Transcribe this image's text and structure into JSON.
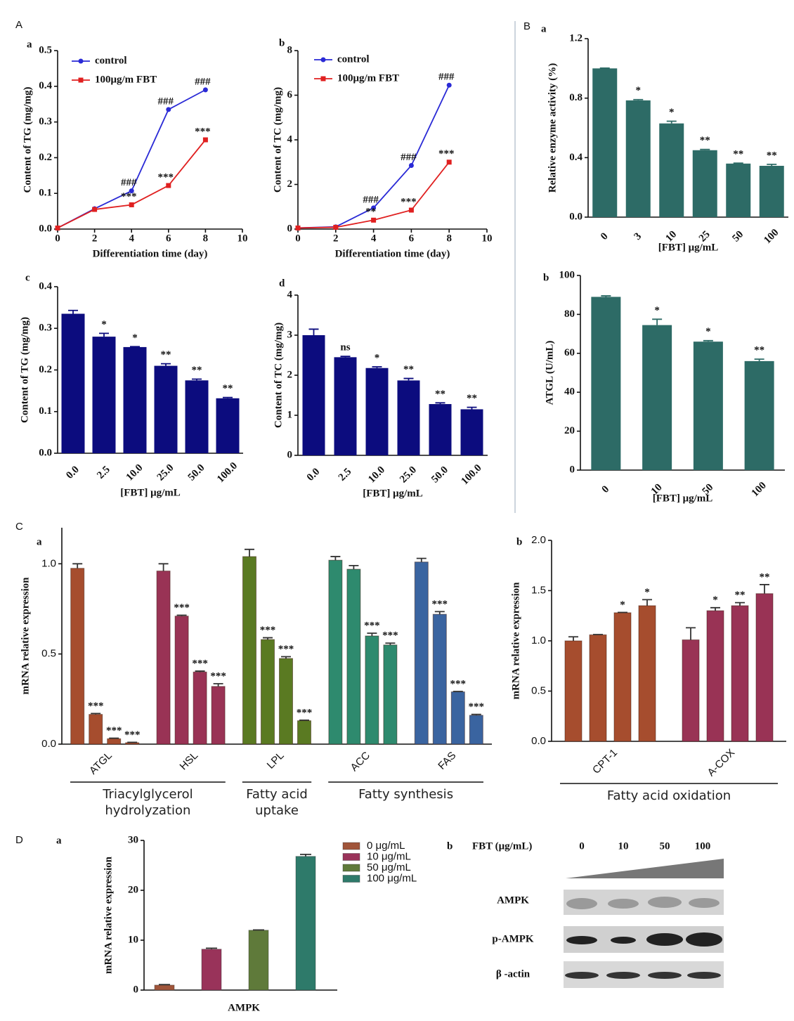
{
  "panel_labels": [
    "A",
    "B",
    "C",
    "D"
  ],
  "chart_data": [
    {
      "label": "a",
      "type": "line",
      "xlabel": "Differentiation time (day)",
      "ylabel": "Content of TG (mg/mg)",
      "x": [
        0,
        2,
        4,
        6,
        8
      ],
      "xlim": [
        0,
        10
      ],
      "xticks": [
        0,
        2,
        4,
        6,
        8,
        10
      ],
      "ylim": [
        0,
        0.5
      ],
      "yticks": [
        {
          "value": 0,
          "label": "0.0"
        },
        0.1,
        0.2,
        0.3,
        0.4,
        0.5
      ],
      "series": [
        {
          "name": "control",
          "color": "#2a2ad6",
          "marker": "circle",
          "values": [
            0.003,
            0.057,
            0.107,
            0.335,
            0.39
          ],
          "annotations": [
            null,
            null,
            "###",
            "###",
            "###"
          ]
        },
        {
          "name": "100μg/m FBT",
          "color": "#e02020",
          "marker": "square",
          "values": [
            0.003,
            0.055,
            0.068,
            0.122,
            0.25
          ],
          "annotations": [
            null,
            null,
            "***",
            "***",
            "***"
          ]
        }
      ]
    },
    {
      "label": "b",
      "type": "line",
      "xlabel": "Differentiation time (day)",
      "ylabel": "Content of TC (mg/mg)",
      "x": [
        0,
        2,
        4,
        6,
        8
      ],
      "xlim": [
        0,
        10
      ],
      "xticks": [
        0,
        2,
        4,
        6,
        8,
        10
      ],
      "ylim": [
        0,
        8
      ],
      "yticks": [
        0,
        2,
        4,
        6,
        8
      ],
      "series": [
        {
          "name": "control",
          "color": "#2a2ad6",
          "marker": "circle",
          "values": [
            0.05,
            0.1,
            0.95,
            2.85,
            6.45
          ],
          "annotations": [
            null,
            null,
            "###",
            "###",
            "###"
          ]
        },
        {
          "name": "100μg/m FBT",
          "color": "#e02020",
          "marker": "square",
          "values": [
            0.05,
            0.08,
            0.4,
            0.85,
            3.0
          ],
          "annotations": [
            null,
            null,
            "**",
            "***",
            "***"
          ]
        }
      ]
    },
    {
      "label": "c",
      "type": "bar",
      "xlabel": "[FBT] μg/mL",
      "ylabel": "Content of TG (mg/mg)",
      "color": "#0c0c7e",
      "categories": [
        "0.0",
        "2.5",
        "10.0",
        "25.0",
        "50.0",
        "100.0"
      ],
      "values": [
        0.335,
        0.28,
        0.255,
        0.21,
        0.175,
        0.132
      ],
      "errors": [
        0.008,
        0.008,
        0.001,
        0.005,
        0.003,
        0.002
      ],
      "annotations": [
        null,
        "*",
        "*",
        "**",
        "**",
        "**"
      ],
      "ylim": [
        0,
        0.4
      ],
      "yticks": [
        {
          "value": 0,
          "label": "0.0"
        },
        0.1,
        0.2,
        0.3,
        0.4
      ]
    },
    {
      "label": "d",
      "type": "bar",
      "xlabel": "[FBT] μg/mL",
      "ylabel": "Content of TC (mg/mg)",
      "color": "#0c0c7e",
      "categories": [
        "0.0",
        "2.5",
        "10.0",
        "25.0",
        "50.0",
        "100.0"
      ],
      "values": [
        3.0,
        2.45,
        2.18,
        1.87,
        1.28,
        1.15
      ],
      "errors": [
        0.15,
        0.02,
        0.03,
        0.05,
        0.03,
        0.05
      ],
      "annotations": [
        null,
        "ns",
        "*",
        "**",
        "**",
        "**"
      ],
      "ylim": [
        0,
        4
      ],
      "yticks": [
        0,
        1,
        2,
        3,
        4
      ]
    },
    {
      "label": "a",
      "type": "bar",
      "xlabel": "[FBT] μg/mL",
      "ylabel": "Relative enzyme activity (%)",
      "color": "#2d6b66",
      "categories": [
        "0",
        "3",
        "10",
        "25",
        "50",
        "100"
      ],
      "values": [
        1.0,
        0.785,
        0.63,
        0.45,
        0.36,
        0.345
      ],
      "errors": [
        0.002,
        0.005,
        0.015,
        0.005,
        0.003,
        0.01
      ],
      "annotations": [
        null,
        "*",
        "*",
        "**",
        "**",
        "**"
      ],
      "ylim": [
        0,
        1.2
      ],
      "yticks": [
        {
          "value": 0,
          "label": "0.0"
        },
        0.4,
        0.8,
        1.2
      ]
    },
    {
      "label": "b",
      "type": "bar",
      "xlabel": "[FBT] μg/mL",
      "ylabel": "ATGL (U/mL)",
      "color": "#2d6b66",
      "categories": [
        "0",
        "10",
        "50",
        "100"
      ],
      "values": [
        89,
        74.5,
        66,
        56
      ],
      "errors": [
        0.5,
        3,
        0.5,
        1
      ],
      "annotations": [
        null,
        "*",
        "*",
        "**"
      ],
      "ylim": [
        0,
        100
      ],
      "yticks": [
        0,
        20,
        40,
        60,
        80,
        100
      ]
    },
    {
      "label": "a",
      "type": "grouped_bar",
      "ylabel": "mRNA relative expression",
      "categories": [
        "ATGL",
        "HSL",
        "LPL",
        "ACC",
        "FAS"
      ],
      "colors": [
        "#a64d2e",
        "#993355",
        "#5a7a22",
        "#2e8a6e",
        "#3a64a0"
      ],
      "values": [
        [
          0.975,
          0.165,
          0.03,
          0.008
        ],
        [
          0.96,
          0.71,
          0.4,
          0.32
        ],
        [
          1.04,
          0.58,
          0.475,
          0.13
        ],
        [
          1.02,
          0.97,
          0.6,
          0.55
        ],
        [
          1.01,
          0.72,
          0.29,
          0.16
        ]
      ],
      "errors": [
        [
          0.025,
          0.005,
          0.003,
          0.002
        ],
        [
          0.04,
          0.005,
          0.005,
          0.015
        ],
        [
          0.04,
          0.01,
          0.01,
          0.003
        ],
        [
          0.02,
          0.02,
          0.015,
          0.01
        ],
        [
          0.02,
          0.015,
          0.002,
          0.005
        ]
      ],
      "annotations": [
        [
          null,
          "***",
          "***",
          "***"
        ],
        [
          null,
          "***",
          "***",
          "***"
        ],
        [
          null,
          "***",
          "***",
          "***"
        ],
        [
          null,
          null,
          "***",
          "***"
        ],
        [
          null,
          "***",
          "***",
          "***"
        ]
      ],
      "brackets": [
        {
          "label": "Triacylglycerol hydrolyzation",
          "span": [
            0,
            1
          ]
        },
        {
          "label": "Fatty acid uptake",
          "span": [
            2,
            2
          ]
        },
        {
          "label": "Fatty synthesis",
          "span": [
            3,
            4
          ]
        }
      ],
      "ylim": [
        0,
        1.2
      ],
      "yticks": [
        {
          "value": 0,
          "label": "0.0"
        },
        0.5,
        {
          "value": 1,
          "label": "1.0"
        }
      ]
    },
    {
      "label": "b",
      "type": "grouped_bar",
      "ylabel": "mRNA relative expression",
      "categories": [
        "CPT-1",
        "A-COX"
      ],
      "colors": [
        "#a64d2e",
        "#993355"
      ],
      "values": [
        [
          1.0,
          1.06,
          1.28,
          1.35
        ],
        [
          1.01,
          1.3,
          1.35,
          1.47
        ]
      ],
      "errors": [
        [
          0.04,
          0.003,
          0.003,
          0.06
        ],
        [
          0.12,
          0.03,
          0.03,
          0.09
        ]
      ],
      "annotations": [
        [
          null,
          null,
          "*",
          "*"
        ],
        [
          null,
          "*",
          "**",
          "**"
        ]
      ],
      "brackets": [
        {
          "label": "Fatty acid oxidation",
          "span": [
            0,
            1
          ]
        }
      ],
      "ylim": [
        0,
        2
      ],
      "yticks": [
        {
          "value": 0,
          "label": "0.0"
        },
        0.5,
        {
          "value": 1,
          "label": "1.0"
        },
        1.5,
        {
          "value": 2,
          "label": "2.0"
        }
      ]
    },
    {
      "label": "a",
      "type": "series_bar",
      "ylabel": "mRNA relative expression",
      "categories": [
        "AMPK"
      ],
      "series": [
        {
          "name": "0 μg/mL",
          "color": "#a0553a",
          "values": [
            1.0
          ],
          "errors": [
            0.1
          ]
        },
        {
          "name": "10 μg/mL",
          "color": "#99335a",
          "values": [
            8.2
          ],
          "errors": [
            0.2
          ]
        },
        {
          "name": "50 μg/mL",
          "color": "#5f7a3a",
          "values": [
            12.0
          ],
          "errors": [
            0.05
          ]
        },
        {
          "name": "100 μg/mL",
          "color": "#2e7a6a",
          "values": [
            26.8
          ],
          "errors": [
            0.4
          ]
        }
      ],
      "ylim": [
        0,
        30
      ],
      "yticks": [
        0,
        10,
        20,
        30
      ]
    }
  ],
  "blot": {
    "label": "b",
    "title": "FBT (μg/mL)",
    "concentrations": [
      "0",
      "10",
      "50",
      "100"
    ],
    "rows": [
      "AMPK",
      "p-AMPK",
      "β -actin"
    ]
  }
}
